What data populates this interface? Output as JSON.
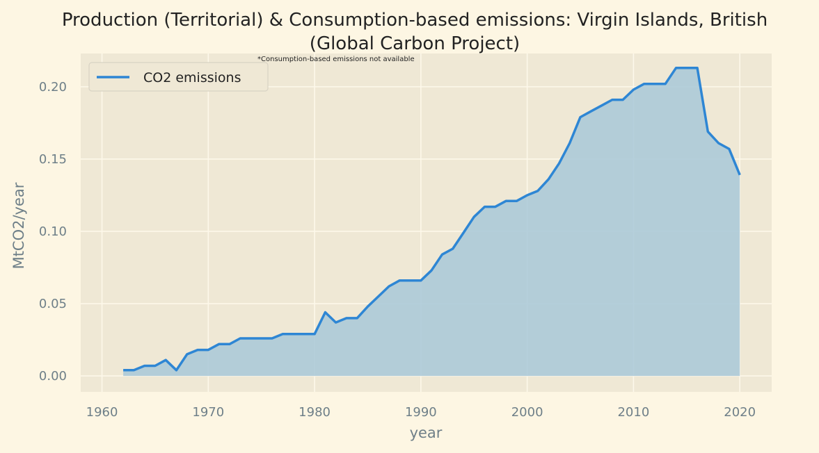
{
  "chart_data": {
    "type": "area",
    "title_line1": "Production (Territorial) & Consumption-based emissions: Virgin Islands, British",
    "title_line2": "(Global Carbon Project)",
    "note": "*Consumption-based emissions not available",
    "xlabel": "year",
    "ylabel": "MtCO2/year",
    "xlim": [
      1958,
      2023
    ],
    "ylim": [
      -0.011,
      0.223
    ],
    "xticks": [
      1960,
      1970,
      1980,
      1990,
      2000,
      2010,
      2020
    ],
    "xtick_labels": [
      "1960",
      "1970",
      "1980",
      "1990",
      "2000",
      "2010",
      "2020"
    ],
    "yticks": [
      0.0,
      0.05,
      0.1,
      0.15,
      0.2
    ],
    "ytick_labels": [
      "0.00",
      "0.05",
      "0.10",
      "0.15",
      "0.20"
    ],
    "grid": true,
    "legend_position": "top-left",
    "colors": {
      "line": "#2e86d4",
      "fill": "#a8c8d8",
      "plot_bg": "#efe8d5",
      "page_bg": "#fdf6e3",
      "grid": "#fdf8ea"
    },
    "series": [
      {
        "name": "CO2 emissions",
        "x": [
          1962,
          1963,
          1964,
          1965,
          1966,
          1967,
          1968,
          1969,
          1970,
          1971,
          1972,
          1973,
          1974,
          1975,
          1976,
          1977,
          1978,
          1979,
          1980,
          1981,
          1982,
          1983,
          1984,
          1985,
          1986,
          1987,
          1988,
          1989,
          1990,
          1991,
          1992,
          1993,
          1994,
          1995,
          1996,
          1997,
          1998,
          1999,
          2000,
          2001,
          2002,
          2003,
          2004,
          2005,
          2006,
          2007,
          2008,
          2009,
          2010,
          2011,
          2012,
          2013,
          2014,
          2015,
          2016,
          2017,
          2018,
          2019,
          2020
        ],
        "values": [
          0.004,
          0.004,
          0.007,
          0.007,
          0.011,
          0.004,
          0.015,
          0.018,
          0.018,
          0.022,
          0.022,
          0.026,
          0.026,
          0.026,
          0.026,
          0.029,
          0.029,
          0.029,
          0.029,
          0.044,
          0.037,
          0.04,
          0.04,
          0.048,
          0.055,
          0.062,
          0.066,
          0.066,
          0.066,
          0.073,
          0.084,
          0.088,
          0.099,
          0.11,
          0.117,
          0.117,
          0.121,
          0.121,
          0.125,
          0.128,
          0.136,
          0.147,
          0.161,
          0.179,
          0.183,
          0.187,
          0.191,
          0.191,
          0.198,
          0.202,
          0.202,
          0.202,
          0.213,
          0.213,
          0.213,
          0.169,
          0.161,
          0.157,
          0.139
        ]
      }
    ]
  }
}
